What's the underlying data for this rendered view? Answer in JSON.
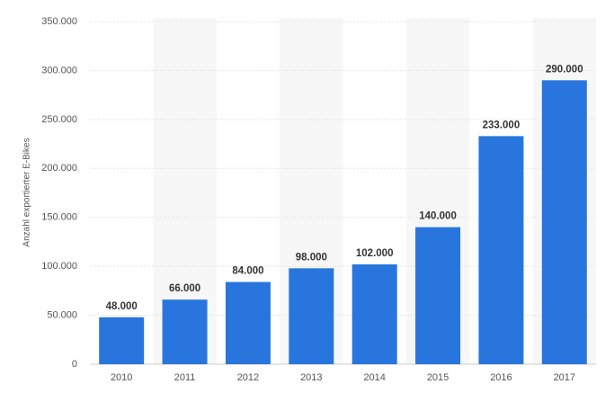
{
  "chart_data": {
    "type": "bar",
    "y_label": "Anzahl exportierter E-Bikes",
    "categories": [
      "2010",
      "2011",
      "2012",
      "2013",
      "2014",
      "2015",
      "2016",
      "2017"
    ],
    "values": [
      48000,
      66000,
      84000,
      98000,
      102000,
      140000,
      233000,
      290000
    ],
    "value_labels": [
      "48.000",
      "66.000",
      "84.000",
      "98.000",
      "102.000",
      "140.000",
      "233.000",
      "290.000"
    ],
    "color": "#2876dd",
    "ylim": [
      0,
      350000
    ],
    "yticks": [
      0,
      {
        "value": 50000,
        "label": "50.000"
      },
      {
        "value": 100000,
        "label": "100.000"
      },
      {
        "value": 150000,
        "label": "150.000"
      },
      {
        "value": 200000,
        "label": "200.000"
      },
      {
        "value": 250000,
        "label": "250.000"
      },
      {
        "value": 300000,
        "label": "300.000"
      },
      {
        "value": 350000,
        "label": "350.000"
      }
    ],
    "grid": true
  }
}
